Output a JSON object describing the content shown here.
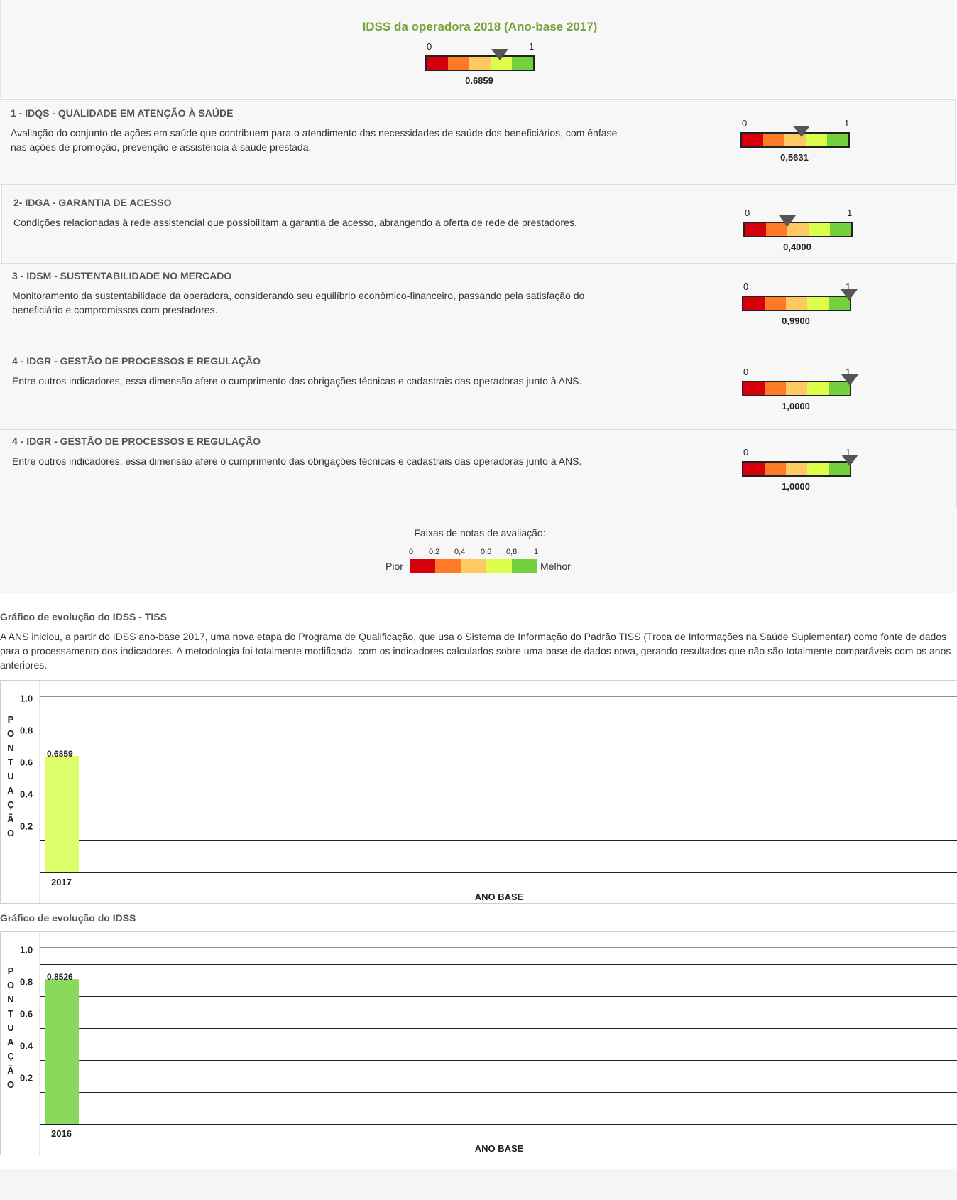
{
  "header": {
    "title": "IDSS da operadora 2018 (Ano-base 2017)",
    "gauge": {
      "min_label": "0",
      "max_label": "1",
      "value": 0.6859,
      "value_label": "0.6859"
    }
  },
  "dimensions": [
    {
      "title": "1 - IDQS - QUALIDADE EM ATENÇÃO À SAÚDE",
      "description": "Avaliação do conjunto de ações em saúde que contribuem para o atendimento das necessidades de saúde dos beneficiários, com ênfase nas ações de promoção, prevenção e assistência à saúde prestada.",
      "gauge": {
        "min_label": "0",
        "max_label": "1",
        "value": 0.5631,
        "value_label": "0,5631"
      }
    },
    {
      "title": "2- IDGA - GARANTIA DE ACESSO",
      "description": "Condições relacionadas à rede assistencial que possibilitam a garantia de acesso, abrangendo a oferta de rede de prestadores.",
      "gauge": {
        "min_label": "0",
        "max_label": "1",
        "value": 0.4,
        "value_label": "0,4000"
      }
    },
    {
      "title": "3 - IDSM - SUSTENTABILIDADE NO MERCADO",
      "description": "Monitoramento da sustentabilidade da operadora, considerando seu equilíbrio econômico-financeiro, passando pela satisfação do beneficiário e compromissos com prestadores.",
      "gauge": {
        "min_label": "0",
        "max_label": "1",
        "value": 0.99,
        "value_label": "0,9900"
      }
    },
    {
      "title": "4 - IDGR - GESTÃO DE PROCESSOS E REGULAÇÃO",
      "description": "Entre outros indicadores, essa dimensão afere o cumprimento das obrigações técnicas e cadastrais das operadoras junto à ANS.",
      "gauge": {
        "min_label": "0",
        "max_label": "1",
        "value": 1.0,
        "value_label": "1,0000"
      }
    },
    {
      "title": "4 - IDGR - GESTÃO DE PROCESSOS E REGULAÇÃO",
      "description": "Entre outros indicadores, essa dimensão afere o cumprimento das obrigações técnicas e cadastrais das operadoras junto à ANS.",
      "gauge": {
        "min_label": "0",
        "max_label": "1",
        "value": 1.0,
        "value_label": "1,0000"
      }
    }
  ],
  "legend": {
    "title": "Faixas de notas de avaliação:",
    "ticks": [
      "0",
      "0,2",
      "0,4",
      "0,6",
      "0,8",
      "1"
    ],
    "worst_label": "Pior",
    "best_label": "Melhor",
    "colors": [
      "#d6000c",
      "#fe7a26",
      "#fec862",
      "#dcfe4a",
      "#74d03c"
    ]
  },
  "tiss_section": {
    "title": "Gráfico de evolução do IDSS - TISS",
    "description": "A ANS iniciou, a partir do IDSS ano-base 2017, uma nova etapa do Programa de Qualificação, que usa o Sistema de Informação do Padrão TISS (Troca de Informações na Saúde Suplementar) como fonte de dados para o processamento dos indicadores. A metodologia foi totalmente modificada, com os indicadores calculados sobre uma base de dados nova, gerando resultados que não são totalmente comparáveis com os anos anteriores."
  },
  "idss_section": {
    "title": "Gráfico de evolução do IDSS"
  },
  "chart_data": [
    {
      "type": "bar",
      "categories": [
        "2017"
      ],
      "values": [
        0.6859
      ],
      "value_labels": [
        "0.6859"
      ],
      "bar_color": "#dcfe6a",
      "ylabel": "PONTUAÇÃO",
      "xlabel": "ANO BASE",
      "yticks": [
        "0.2",
        "0.4",
        "0.6",
        "0.8",
        "1.0"
      ],
      "ylim": [
        0,
        1.1
      ],
      "grid": true
    },
    {
      "type": "bar",
      "categories": [
        "2016"
      ],
      "values": [
        0.8526
      ],
      "value_labels": [
        "0.8526"
      ],
      "bar_color": "#8bd95c",
      "ylabel": "PONTUAÇÃO",
      "xlabel": "ANO BASE",
      "yticks": [
        "0.2",
        "0.4",
        "0.6",
        "0.8",
        "1.0"
      ],
      "ylim": [
        0,
        1.1
      ],
      "grid": true
    }
  ]
}
